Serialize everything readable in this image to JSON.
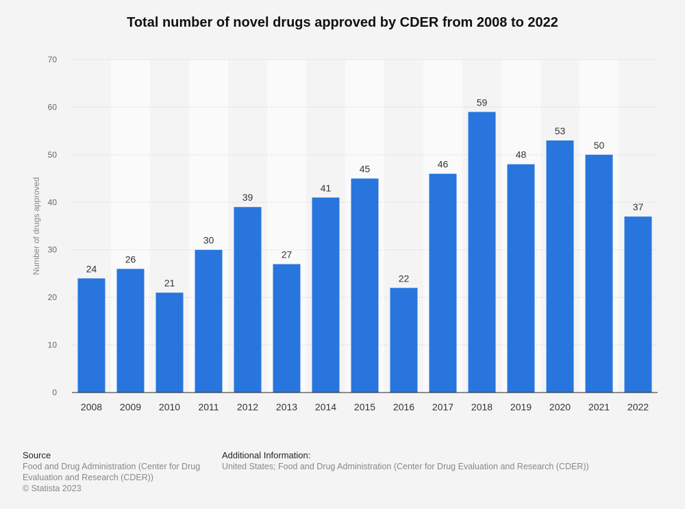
{
  "chart_data": {
    "type": "bar",
    "title": "Total number of novel drugs approved by CDER from 2008 to 2022",
    "xlabel": "",
    "ylabel": "Number of drugs approved",
    "categories": [
      "2008",
      "2009",
      "2010",
      "2011",
      "2012",
      "2013",
      "2014",
      "2015",
      "2016",
      "2017",
      "2018",
      "2019",
      "2020",
      "2021",
      "2022"
    ],
    "values": [
      24,
      26,
      21,
      30,
      39,
      27,
      41,
      45,
      22,
      46,
      59,
      48,
      53,
      50,
      37
    ],
    "ylim": [
      0,
      70
    ],
    "yticks": [
      0,
      10,
      20,
      30,
      40,
      50,
      60,
      70
    ],
    "grid": true,
    "bar_color": "#2876dd",
    "data_labels": true
  },
  "footer": {
    "source_heading": "Source",
    "source_lines": [
      "Food and Drug Administration (Center for Drug",
      "Evaluation and Research (CDER))",
      "© Statista 2023"
    ],
    "info_heading": "Additional Information:",
    "info_text": "United States; Food and Drug Administration (Center for Drug Evaluation and Research (CDER))"
  }
}
